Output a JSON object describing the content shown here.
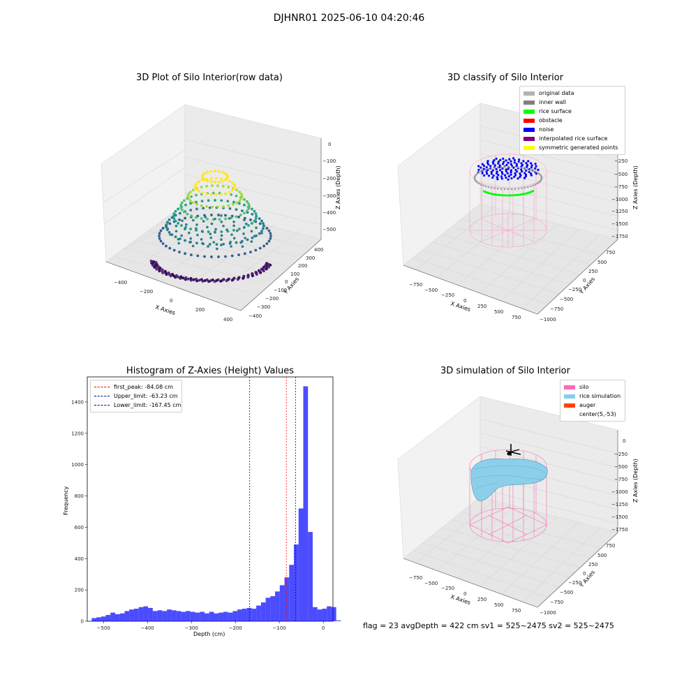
{
  "figure": {
    "suptitle": "DJHNR01 2025-06-10 04:20:46",
    "footer": "flag = 23  avgDepth = 422 cm  sv1 = 525~2475  sv2 = 525~2475"
  },
  "panels": {
    "raw": {
      "title": "3D Plot of Silo Interior(row data)",
      "xlabel": "X Axies",
      "ylabel": "Y Axies",
      "zlabel": "Z Axies (Depth)",
      "xticks": [
        "−400",
        "−200",
        "0",
        "200",
        "400"
      ],
      "yticks": [
        "400",
        "300",
        "200",
        "100",
        "0",
        "−100",
        "−200",
        "−300",
        "−400"
      ],
      "zticks": [
        "0",
        "−100",
        "−200",
        "−300",
        "−400",
        "−500"
      ],
      "colormap": "viridis"
    },
    "classify": {
      "title": "3D classify of Silo Interior",
      "xlabel": "X Axies",
      "ylabel": "Y Axies",
      "zlabel": "Z Axies (Depth)",
      "xticks": [
        "−750",
        "−500",
        "−250",
        "0",
        "250",
        "500",
        "750"
      ],
      "yticks": [
        "750",
        "500",
        "250",
        "0",
        "−250",
        "−500",
        "−750",
        "−1000"
      ],
      "zticks": [
        "0",
        "−250",
        "−500",
        "−750",
        "−1000",
        "−1250",
        "−1500",
        "−1750"
      ],
      "legend": [
        {
          "label": "original data",
          "color": "#b3b3b3"
        },
        {
          "label": "inner wall",
          "color": "#808080"
        },
        {
          "label": "rice surface",
          "color": "#00ff00"
        },
        {
          "label": "obstacle",
          "color": "#ff0000"
        },
        {
          "label": "noise",
          "color": "#0000ff"
        },
        {
          "label": "interpolated rice surface",
          "color": "#800080"
        },
        {
          "label": "symmetric generated points",
          "color": "#ffff00"
        }
      ]
    },
    "simulation": {
      "title": "3D simulation of Silo Interior",
      "xlabel": "X Axies",
      "ylabel": "Y Axies",
      "zlabel": "Z Axies (Depth)",
      "xticks": [
        "−750",
        "−500",
        "−250",
        "0",
        "250",
        "500",
        "750"
      ],
      "yticks": [
        "750",
        "500",
        "250",
        "0",
        "−250",
        "−500",
        "−750",
        "−1000"
      ],
      "zticks": [
        "0",
        "−250",
        "−500",
        "−750",
        "−1000",
        "−1250",
        "−1500",
        "−1750"
      ],
      "legend": [
        {
          "label": "silo",
          "color": "#ff69b4"
        },
        {
          "label": "rice simulation",
          "color": "#87ceeb"
        },
        {
          "label": "auger",
          "color": "#ff4500"
        },
        {
          "label": "center(5,-53)",
          "color": "none"
        }
      ]
    }
  },
  "chart_data": {
    "type": "bar",
    "title": "Histogram of Z-Axies (Height) Values",
    "xlabel": "Depth (cm)",
    "ylabel": "Frequency",
    "xlim": [
      -537,
      22
    ],
    "ylim": [
      0,
      1560
    ],
    "xticks": [
      -500,
      -400,
      -300,
      -200,
      -100,
      0
    ],
    "xtick_labels": [
      "−500",
      "−400",
      "−300",
      "−200",
      "−100",
      "0"
    ],
    "yticks": [
      0,
      200,
      400,
      600,
      800,
      1000,
      1200,
      1400
    ],
    "bar_color": "#0000ff",
    "bin_start": -527,
    "bin_width": 10.7,
    "values": [
      20,
      25,
      30,
      40,
      55,
      45,
      50,
      65,
      75,
      80,
      90,
      95,
      85,
      65,
      70,
      65,
      75,
      70,
      65,
      60,
      65,
      60,
      55,
      60,
      50,
      60,
      50,
      55,
      60,
      55,
      65,
      75,
      80,
      85,
      80,
      100,
      120,
      150,
      160,
      190,
      230,
      280,
      360,
      490,
      720,
      1500,
      570,
      90,
      75,
      80,
      95,
      90,
      5
    ],
    "lines": [
      {
        "label": "first_peak: -84.08 cm",
        "x": -84.08,
        "color": "#ff0000"
      },
      {
        "label": "Upper_limit: -63.23 cm",
        "x": -63.23,
        "color": "#0000aa"
      },
      {
        "label": "Lower_limit: -167.45 cm",
        "x": -167.45,
        "color": "#0000aa"
      }
    ]
  }
}
